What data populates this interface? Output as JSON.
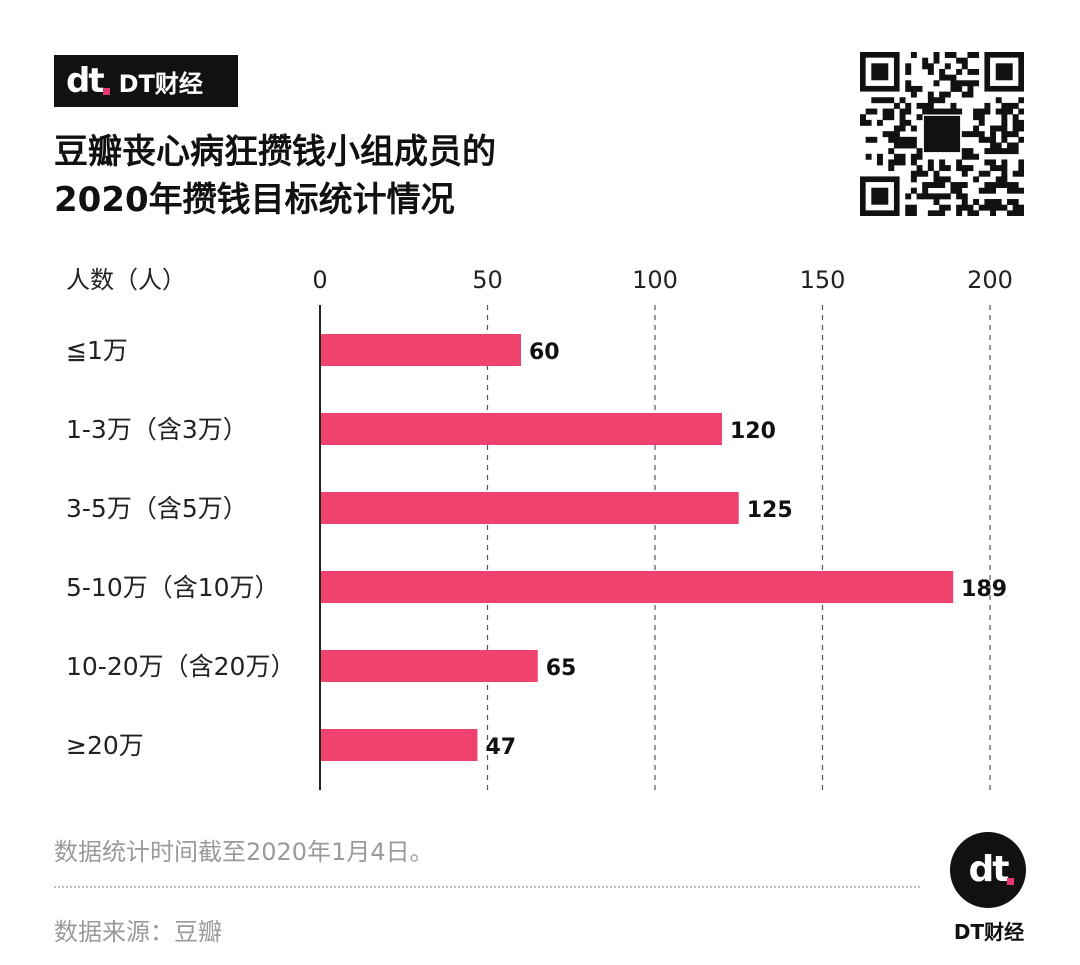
{
  "brand": {
    "logo_text": "dt",
    "name": "DT财经"
  },
  "title_lines": [
    "豆瓣丧心病狂攒钱小组成员的",
    "2020年攒钱目标统计情况"
  ],
  "footnote": "数据统计时间截至2020年1月4日。",
  "source": "数据来源：豆瓣",
  "colors": {
    "bar": "#f0426f",
    "grid": "#555555",
    "axis": "#222222"
  },
  "chart_data": {
    "type": "bar",
    "orientation": "horizontal",
    "axis_title": "人数（人）",
    "categories": [
      "≦1万",
      "1-3万（含3万）",
      "3-5万（含5万）",
      "5-10万（含10万）",
      "10-20万（含20万）",
      "≥20万"
    ],
    "values": [
      60,
      120,
      125,
      189,
      65,
      47
    ],
    "xlim": [
      0,
      200
    ],
    "ticks": [
      0,
      50,
      100,
      150,
      200
    ],
    "grid": "dashed-vertical",
    "data_labels": true
  }
}
